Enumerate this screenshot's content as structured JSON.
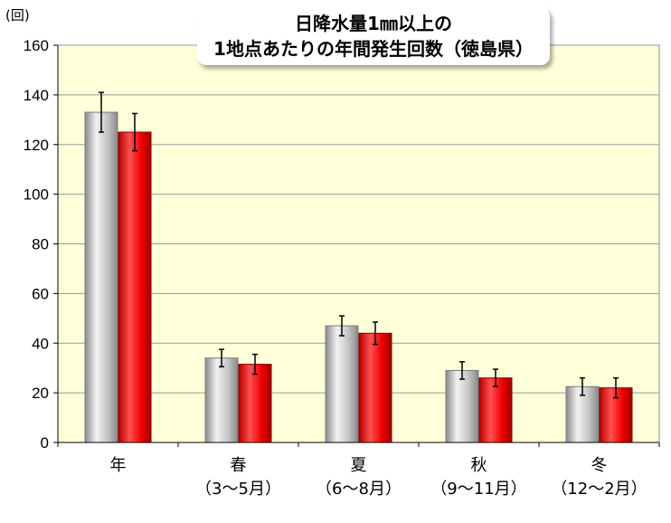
{
  "chart_data": {
    "type": "bar",
    "title_line1": "日降水量1㎜以上の",
    "title_line2": "1地点あたりの年間発生回数（徳島県）",
    "ylabel": "(回)",
    "ylim": [
      0,
      160
    ],
    "yticks": [
      0,
      20,
      40,
      60,
      80,
      100,
      120,
      140,
      160
    ],
    "grid": true,
    "categories": [
      {
        "name": "年",
        "period": ""
      },
      {
        "name": "春",
        "period": "（3～5月）"
      },
      {
        "name": "夏",
        "period": "（6～8月）"
      },
      {
        "name": "秋",
        "period": "（9～11月）"
      },
      {
        "name": "冬",
        "period": "（12～2月）"
      }
    ],
    "series": [
      {
        "color": "#b5b5b5",
        "values": [
          133,
          34,
          47,
          29,
          22.5
        ],
        "err": [
          8,
          3.5,
          4,
          3.5,
          3.5
        ]
      },
      {
        "color": "#ff0000",
        "values": [
          125,
          31.5,
          44,
          26,
          22
        ],
        "err": [
          7.5,
          4,
          4.5,
          3.5,
          4
        ]
      }
    ]
  }
}
